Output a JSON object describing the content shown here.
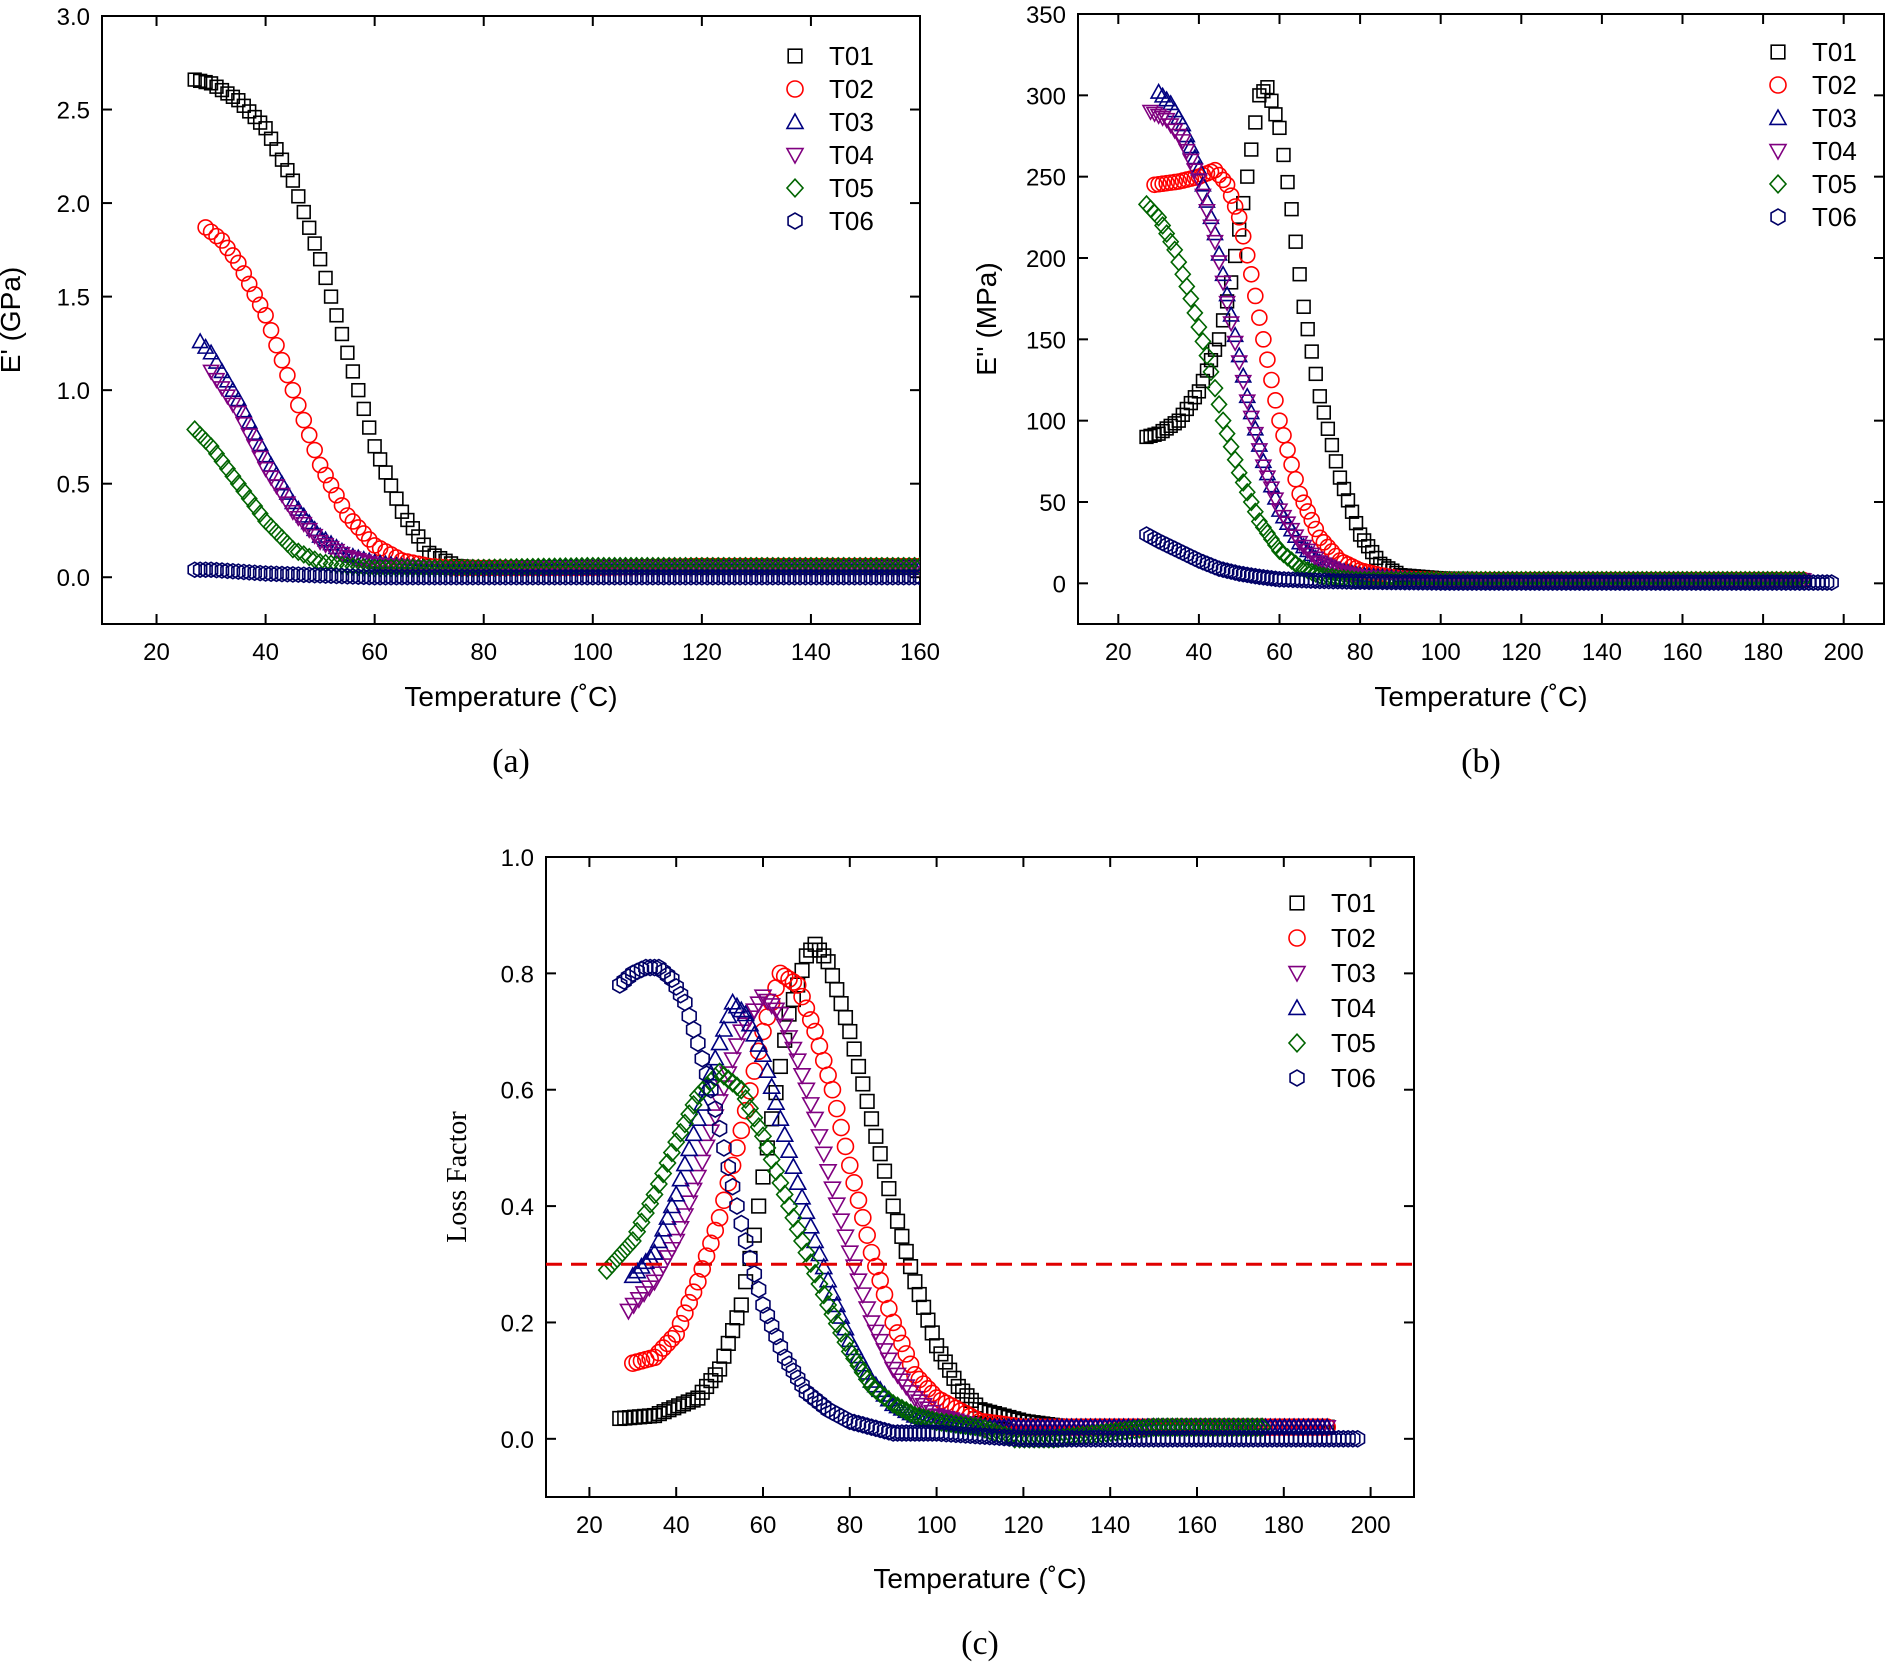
{
  "colors": {
    "T01": "#000000",
    "T02": "#ff0000",
    "T03": "#000080",
    "T04": "#800080",
    "T05": "#006400",
    "T06": "#000066",
    "reference_line": "#e00000"
  },
  "chart_data": [
    {
      "type": "scatter",
      "panel_caption": "(a)",
      "xlabel": "Temperature (˚C)",
      "ylabel": "E' (GPa)",
      "xlim": [
        10,
        160
      ],
      "ylim": [
        -0.25,
        3.0
      ],
      "xticks": [
        20,
        40,
        60,
        80,
        100,
        120,
        140,
        160
      ],
      "yticks": [
        0.0,
        0.5,
        1.0,
        1.5,
        2.0,
        2.5,
        3.0
      ],
      "ytick_labels": [
        "0.0",
        "0.5",
        "1.0",
        "1.5",
        "2.0",
        "2.5",
        "3.0"
      ],
      "legend_position": "top-right",
      "series": [
        {
          "name": "T01",
          "marker": "square",
          "color": "#000000",
          "x": [
            27,
            30,
            35,
            40,
            45,
            50,
            55,
            60,
            65,
            70,
            75,
            80,
            100,
            120,
            140,
            160
          ],
          "y": [
            2.66,
            2.64,
            2.55,
            2.4,
            2.12,
            1.7,
            1.2,
            0.7,
            0.35,
            0.13,
            0.06,
            0.05,
            0.05,
            0.05,
            0.05,
            0.05
          ]
        },
        {
          "name": "T02",
          "marker": "circle",
          "color": "#ff0000",
          "x": [
            29,
            32,
            35,
            40,
            45,
            50,
            55,
            60,
            65,
            70,
            75,
            80,
            100,
            120,
            140,
            160
          ],
          "y": [
            1.87,
            1.8,
            1.68,
            1.4,
            1.0,
            0.6,
            0.33,
            0.17,
            0.09,
            0.06,
            0.05,
            0.05,
            0.05,
            0.06,
            0.06,
            0.06
          ]
        },
        {
          "name": "T03",
          "marker": "triangle-up",
          "color": "#000080",
          "x": [
            28,
            30,
            35,
            40,
            45,
            50,
            55,
            60,
            65,
            70,
            75,
            80,
            100,
            120,
            140,
            160
          ],
          "y": [
            1.26,
            1.2,
            0.95,
            0.65,
            0.4,
            0.22,
            0.12,
            0.08,
            0.06,
            0.05,
            0.05,
            0.05,
            0.05,
            0.05,
            0.05,
            0.05
          ]
        },
        {
          "name": "T04",
          "marker": "triangle-down",
          "color": "#800080",
          "x": [
            30,
            35,
            40,
            45,
            50,
            55,
            60,
            65,
            70,
            75,
            80,
            100,
            120,
            140,
            160
          ],
          "y": [
            1.1,
            0.88,
            0.58,
            0.35,
            0.19,
            0.11,
            0.07,
            0.06,
            0.05,
            0.05,
            0.05,
            0.05,
            0.05,
            0.05,
            0.05
          ]
        },
        {
          "name": "T05",
          "marker": "diamond",
          "color": "#006400",
          "x": [
            27,
            30,
            35,
            40,
            45,
            50,
            55,
            60,
            65,
            70,
            75,
            80,
            100,
            120,
            140,
            160
          ],
          "y": [
            0.79,
            0.7,
            0.5,
            0.3,
            0.15,
            0.08,
            0.06,
            0.05,
            0.05,
            0.05,
            0.05,
            0.05,
            0.06,
            0.06,
            0.06,
            0.06
          ]
        },
        {
          "name": "T06",
          "marker": "hexagon",
          "color": "#000066",
          "x": [
            27,
            30,
            40,
            50,
            60,
            80,
            100,
            120,
            140,
            160
          ],
          "y": [
            0.04,
            0.04,
            0.02,
            0.01,
            0.0,
            0.0,
            0.0,
            0.0,
            0.0,
            0.0
          ]
        }
      ]
    },
    {
      "type": "scatter",
      "panel_caption": "(b)",
      "xlabel": "Temperature (˚C)",
      "ylabel": "E'' (MPa)",
      "xlim": [
        10,
        210
      ],
      "ylim": [
        -25,
        350
      ],
      "xticks": [
        20,
        40,
        60,
        80,
        100,
        120,
        140,
        160,
        180,
        200
      ],
      "yticks": [
        0,
        50,
        100,
        150,
        200,
        250,
        300,
        350
      ],
      "ytick_labels": [
        "0",
        "50",
        "100",
        "150",
        "200",
        "250",
        "300",
        "350"
      ],
      "legend_position": "top-right",
      "series": [
        {
          "name": "T01",
          "marker": "square",
          "color": "#000000",
          "x": [
            27,
            30,
            35,
            40,
            45,
            48,
            52,
            55,
            57,
            60,
            63,
            66,
            70,
            75,
            80,
            85,
            90,
            100,
            120,
            150,
            190
          ],
          "y": [
            90,
            92,
            100,
            118,
            150,
            185,
            250,
            300,
            305,
            280,
            230,
            170,
            115,
            65,
            30,
            12,
            5,
            3,
            2,
            2,
            2
          ]
        },
        {
          "name": "T02",
          "marker": "circle",
          "color": "#ff0000",
          "x": [
            29,
            32,
            35,
            40,
            44,
            47,
            50,
            53,
            56,
            60,
            65,
            70,
            75,
            80,
            85,
            90,
            100,
            120,
            150,
            190
          ],
          "y": [
            245,
            246,
            247,
            250,
            254,
            245,
            225,
            190,
            150,
            100,
            55,
            28,
            14,
            8,
            5,
            3,
            2,
            2,
            2,
            2
          ]
        },
        {
          "name": "T03",
          "marker": "triangle-up",
          "color": "#000080",
          "x": [
            30,
            33,
            36,
            40,
            44,
            48,
            52,
            56,
            60,
            65,
            70,
            75,
            80,
            90,
            100,
            120,
            150,
            190
          ],
          "y": [
            302,
            295,
            282,
            255,
            215,
            165,
            115,
            75,
            45,
            25,
            13,
            8,
            5,
            3,
            2,
            2,
            2,
            2
          ]
        },
        {
          "name": "T04",
          "marker": "triangle-down",
          "color": "#800080",
          "x": [
            28,
            32,
            36,
            40,
            44,
            48,
            52,
            56,
            60,
            65,
            70,
            75,
            80,
            90,
            100,
            120,
            150,
            190
          ],
          "y": [
            290,
            285,
            272,
            248,
            210,
            160,
            112,
            72,
            45,
            25,
            13,
            7,
            4,
            3,
            2,
            2,
            2,
            2
          ]
        },
        {
          "name": "T05",
          "marker": "diamond",
          "color": "#006400",
          "x": [
            27,
            30,
            34,
            38,
            42,
            46,
            50,
            55,
            60,
            65,
            70,
            75,
            80,
            90,
            100,
            120,
            150,
            190
          ],
          "y": [
            233,
            225,
            205,
            175,
            140,
            100,
            68,
            38,
            20,
            10,
            5,
            3,
            2,
            2,
            2,
            2,
            2,
            2
          ]
        },
        {
          "name": "T06",
          "marker": "hexagon",
          "color": "#000066",
          "x": [
            27,
            30,
            35,
            40,
            45,
            50,
            55,
            60,
            70,
            80,
            100,
            120,
            150,
            180,
            197
          ],
          "y": [
            30,
            26,
            20,
            14,
            9,
            6,
            4,
            2.5,
            1.5,
            1,
            0.5,
            0.5,
            0.5,
            0.5,
            0.5
          ]
        }
      ]
    },
    {
      "type": "scatter",
      "panel_caption": "(c)",
      "xlabel": "Temperature (˚C)",
      "ylabel": "Loss Factor",
      "xlim": [
        10,
        210
      ],
      "ylim": [
        -0.1,
        1.0
      ],
      "xticks": [
        20,
        40,
        60,
        80,
        100,
        120,
        140,
        160,
        180,
        200
      ],
      "yticks": [
        0.0,
        0.2,
        0.4,
        0.6,
        0.8,
        1.0
      ],
      "ytick_labels": [
        "0.0",
        "0.2",
        "0.4",
        "0.6",
        "0.8",
        "1.0"
      ],
      "legend_position": "top-right",
      "reference_line": {
        "y": 0.3,
        "style": "dashed",
        "color": "#e00000"
      },
      "series": [
        {
          "name": "T01",
          "marker": "square",
          "color": "#000000",
          "x": [
            27,
            35,
            45,
            50,
            55,
            58,
            62,
            66,
            70,
            72,
            75,
            80,
            85,
            90,
            95,
            100,
            105,
            110,
            120,
            130,
            150,
            190
          ],
          "y": [
            0.035,
            0.04,
            0.07,
            0.12,
            0.23,
            0.35,
            0.55,
            0.73,
            0.83,
            0.85,
            0.82,
            0.7,
            0.55,
            0.4,
            0.27,
            0.16,
            0.09,
            0.05,
            0.03,
            0.02,
            0.02,
            0.02
          ]
        },
        {
          "name": "T02",
          "marker": "circle",
          "color": "#ff0000",
          "x": [
            30,
            35,
            40,
            45,
            50,
            55,
            60,
            64,
            68,
            72,
            76,
            80,
            85,
            90,
            95,
            100,
            110,
            120,
            140,
            190
          ],
          "y": [
            0.13,
            0.14,
            0.18,
            0.27,
            0.38,
            0.53,
            0.7,
            0.8,
            0.78,
            0.7,
            0.6,
            0.47,
            0.32,
            0.2,
            0.11,
            0.07,
            0.03,
            0.02,
            0.02,
            0.02
          ]
        },
        {
          "name": "T03",
          "marker": "triangle-down",
          "color": "#800080",
          "x": [
            29,
            35,
            40,
            45,
            50,
            55,
            60,
            64,
            68,
            72,
            76,
            80,
            85,
            90,
            95,
            100,
            110,
            130,
            190
          ],
          "y": [
            0.22,
            0.27,
            0.34,
            0.45,
            0.58,
            0.7,
            0.76,
            0.73,
            0.65,
            0.55,
            0.43,
            0.32,
            0.2,
            0.12,
            0.07,
            0.04,
            0.02,
            0.02,
            0.02
          ]
        },
        {
          "name": "T04",
          "marker": "triangle-up",
          "color": "#000080",
          "x": [
            30,
            35,
            40,
            45,
            50,
            53,
            56,
            60,
            64,
            68,
            72,
            76,
            80,
            85,
            90,
            95,
            100,
            110,
            130,
            190
          ],
          "y": [
            0.28,
            0.32,
            0.42,
            0.55,
            0.68,
            0.75,
            0.73,
            0.66,
            0.55,
            0.44,
            0.34,
            0.25,
            0.17,
            0.1,
            0.06,
            0.04,
            0.03,
            0.02,
            0.02,
            0.02
          ]
        },
        {
          "name": "T05",
          "marker": "diamond",
          "color": "#006400",
          "x": [
            24,
            30,
            35,
            40,
            45,
            50,
            55,
            60,
            65,
            70,
            75,
            80,
            85,
            90,
            95,
            100,
            110,
            118,
            127,
            150,
            175
          ],
          "y": [
            0.29,
            0.34,
            0.42,
            0.51,
            0.59,
            0.63,
            0.6,
            0.52,
            0.42,
            0.32,
            0.23,
            0.15,
            0.09,
            0.06,
            0.04,
            0.03,
            0.02,
            0.0,
            0.0,
            0.02,
            0.02
          ]
        },
        {
          "name": "T06",
          "marker": "hexagon",
          "color": "#000066",
          "x": [
            27,
            30,
            33,
            36,
            39,
            42,
            45,
            48,
            51,
            54,
            57,
            60,
            65,
            70,
            75,
            80,
            85,
            90,
            95,
            100,
            120,
            150,
            197
          ],
          "y": [
            0.78,
            0.8,
            0.81,
            0.81,
            0.79,
            0.75,
            0.68,
            0.6,
            0.5,
            0.4,
            0.31,
            0.23,
            0.14,
            0.08,
            0.05,
            0.03,
            0.02,
            0.01,
            0.01,
            0.01,
            0.0,
            0.0,
            0.0
          ]
        }
      ]
    }
  ]
}
